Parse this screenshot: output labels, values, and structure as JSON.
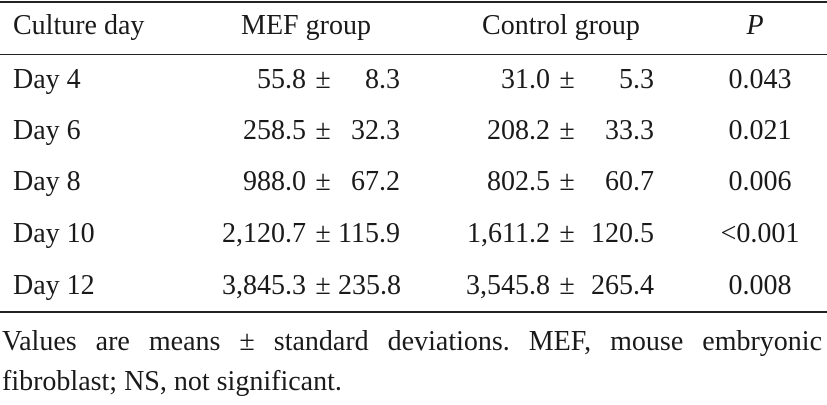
{
  "table": {
    "headers": {
      "culture_day": "Culture  day",
      "mef_group": "MEF  group",
      "control_group": "Control  group",
      "p": "P"
    },
    "pm_symbol": "±",
    "rows": [
      {
        "day": "Day  4",
        "mef_mean": "55.8",
        "mef_sd": "8.3",
        "ctrl_mean": "31.0",
        "ctrl_sd": "5.3",
        "p": "0.043"
      },
      {
        "day": "Day  6",
        "mef_mean": "258.5",
        "mef_sd": "32.3",
        "ctrl_mean": "208.2",
        "ctrl_sd": "33.3",
        "p": "0.021"
      },
      {
        "day": "Day  8",
        "mef_mean": "988.0",
        "mef_sd": "67.2",
        "ctrl_mean": "802.5",
        "ctrl_sd": "60.7",
        "p": "0.006"
      },
      {
        "day": "Day  10",
        "mef_mean": "2,120.7",
        "mef_sd": "115.9",
        "ctrl_mean": "1,611.2",
        "ctrl_sd": "120.5",
        "p": "<0.001"
      },
      {
        "day": "Day  12",
        "mef_mean": "3,845.3",
        "mef_sd": "235.8",
        "ctrl_mean": "3,545.8",
        "ctrl_sd": "265.4",
        "p": "0.008"
      }
    ]
  },
  "footnote": "Values are means ± standard deviations. MEF, mouse embryonic fibroblast; NS, not significant."
}
